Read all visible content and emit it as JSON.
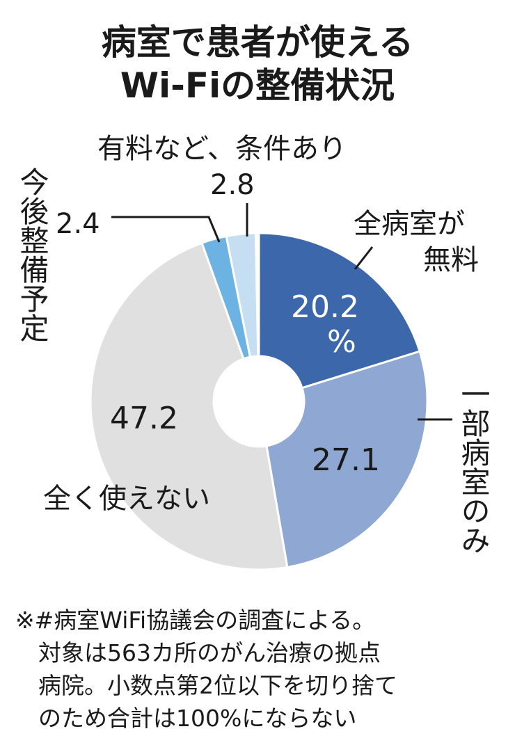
{
  "title": [
    "病室で患者が使える",
    "Wi-Fiの整備状況"
  ],
  "chart_data": {
    "type": "pie",
    "donut": true,
    "title": "病室で患者が使えるWi-Fiの整備状況",
    "unit": "%",
    "slices": [
      {
        "label": "全病室が無料",
        "value": 20.2,
        "display": "20.2",
        "color": "#3c68ab"
      },
      {
        "label": "一部病室のみ",
        "value": 27.1,
        "display": "27.1",
        "color": "#8ea7d3"
      },
      {
        "label": "全く使えない",
        "value": 47.2,
        "display": "47.2",
        "color": "#e0e0e0"
      },
      {
        "label": "今後整備予定",
        "value": 2.4,
        "display": "2.4",
        "color": "#6cb2e3"
      },
      {
        "label": "有料など、条件あり",
        "value": 2.8,
        "display": "2.8",
        "color": "#c6def2"
      }
    ],
    "start": "top",
    "direction": "clockwise"
  },
  "percent_sign": "%",
  "note": "※#病室WiFi協議会の調査による。\n　対象は563カ所のがん治療の拠点\n　病院。小数点第2位以下を切り捨て\n　のため合計は100%にならない"
}
